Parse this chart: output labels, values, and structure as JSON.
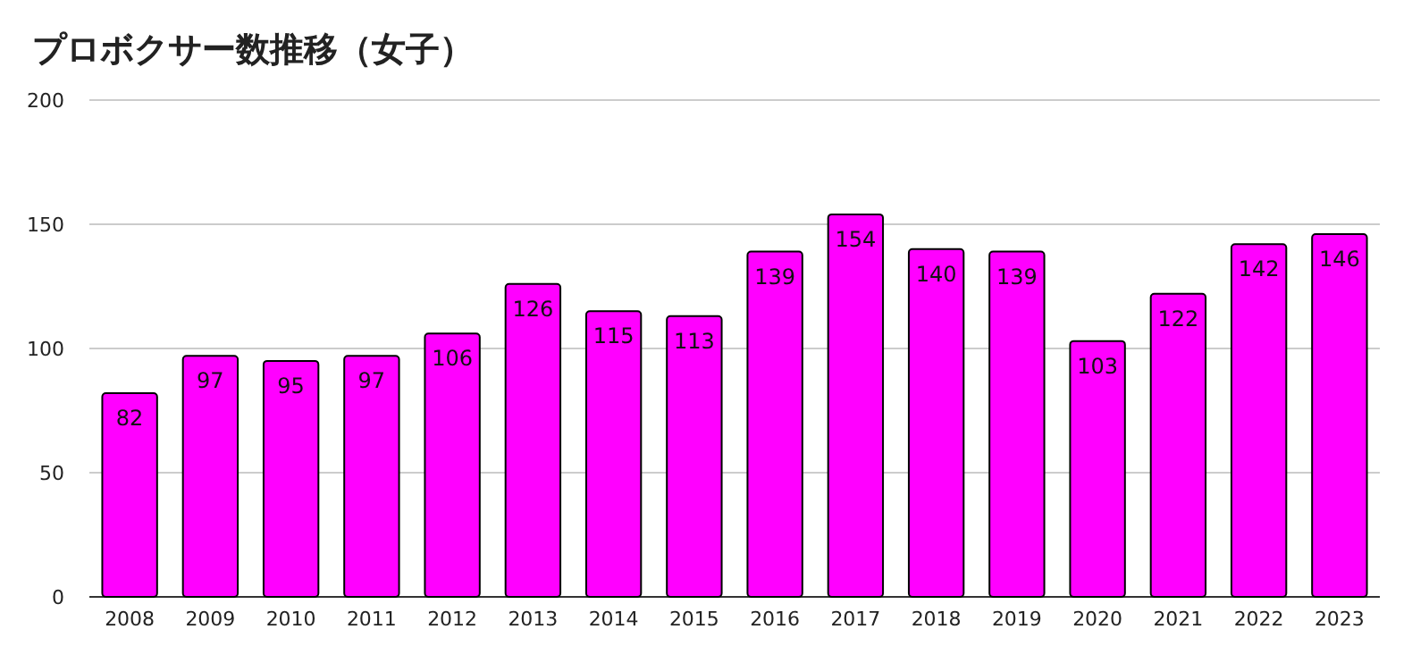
{
  "chart_data": {
    "type": "bar",
    "title": "プロボクサー数推移（女子）",
    "categories": [
      "2008",
      "2009",
      "2010",
      "2011",
      "2012",
      "2013",
      "2014",
      "2015",
      "2016",
      "2017",
      "2018",
      "2019",
      "2020",
      "2021",
      "2022",
      "2023"
    ],
    "values": [
      82,
      97,
      95,
      97,
      106,
      126,
      115,
      113,
      139,
      154,
      140,
      139,
      103,
      122,
      142,
      146
    ],
    "color": "#ff00ff",
    "ylim": [
      0,
      200
    ],
    "yticks": [
      0,
      50,
      100,
      150,
      200
    ],
    "grid": "y",
    "data_labels": true
  }
}
